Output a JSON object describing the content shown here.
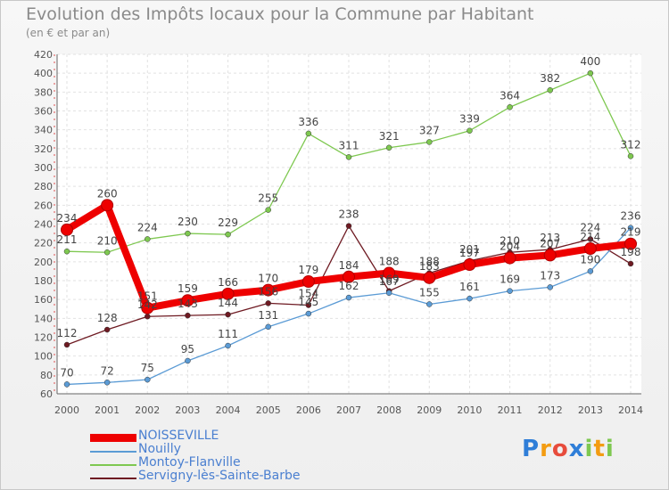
{
  "chart_data": {
    "type": "line",
    "title": "Evolution des Impôts locaux pour la Commune par Habitant",
    "subtitle": "(en € et par an)",
    "x": [
      "2000",
      "2001",
      "2002",
      "2003",
      "2004",
      "2005",
      "2006",
      "2007",
      "2008",
      "2009",
      "2010",
      "2011",
      "2012",
      "2013",
      "2014"
    ],
    "ylim": [
      60,
      420
    ],
    "yticks": [
      60,
      80,
      100,
      120,
      140,
      160,
      180,
      200,
      220,
      240,
      260,
      280,
      300,
      320,
      340,
      360,
      380,
      400,
      420
    ],
    "series": [
      {
        "name": "Servigny-lès-Sainte-Barbe",
        "color": "#6e1a22",
        "values": [
          112,
          128,
          142,
          143,
          144,
          156,
          154,
          238,
          169,
          188,
          201,
          210,
          213,
          224,
          198
        ],
        "labels": [
          "112",
          "128",
          "142",
          "143",
          "144",
          "156",
          "154",
          "238",
          "169",
          "188",
          "201",
          "210",
          "213",
          "224",
          "198"
        ]
      },
      {
        "name": "Nouilly",
        "color": "#5b9bd5",
        "values": [
          70,
          72,
          75,
          95,
          111,
          131,
          145,
          162,
          167,
          155,
          161,
          169,
          173,
          190,
          236
        ],
        "labels": [
          "70",
          "72",
          "75",
          "95",
          "111",
          "131",
          "145",
          "162",
          "167",
          "155",
          "161",
          "169",
          "173",
          "190",
          "236"
        ]
      },
      {
        "name": "Montoy-Flanville",
        "color": "#7ec850",
        "values": [
          211,
          210,
          224,
          230,
          229,
          255,
          336,
          311,
          321,
          327,
          339,
          364,
          382,
          400,
          312
        ],
        "labels": [
          "211",
          "210",
          "224",
          "230",
          "229",
          "255",
          "336",
          "311",
          "321",
          "327",
          "339",
          "364",
          "382",
          "400",
          "312"
        ]
      },
      {
        "name": "NOISSEVILLE",
        "color": "#ee0000",
        "values": [
          234,
          260,
          151,
          159,
          166,
          170,
          179,
          184,
          188,
          183,
          197,
          204,
          207,
          214,
          219
        ],
        "labels": [
          "234",
          "260",
          "151",
          "159",
          "166",
          "170",
          "179",
          "184",
          "188",
          "183",
          "197",
          "204",
          "207",
          "214",
          "219"
        ]
      }
    ],
    "legend": [
      "NOISSEVILLE",
      "Nouilly",
      "Montoy-Flanville",
      "Servigny-lès-Sainte-Barbe"
    ],
    "legend_colors": [
      "#ee0000",
      "#5b9bd5",
      "#7ec850",
      "#6e1a22"
    ],
    "grid": true
  },
  "logo": {
    "text": "Proxiti",
    "letters": [
      "P",
      "r",
      "o",
      "x",
      "i",
      "t",
      "i"
    ],
    "colors": [
      "#2f7ed8",
      "#f39c12",
      "#e74c3c",
      "#2f7ed8",
      "#7ec850",
      "#f39c12",
      "#7ec850"
    ]
  }
}
